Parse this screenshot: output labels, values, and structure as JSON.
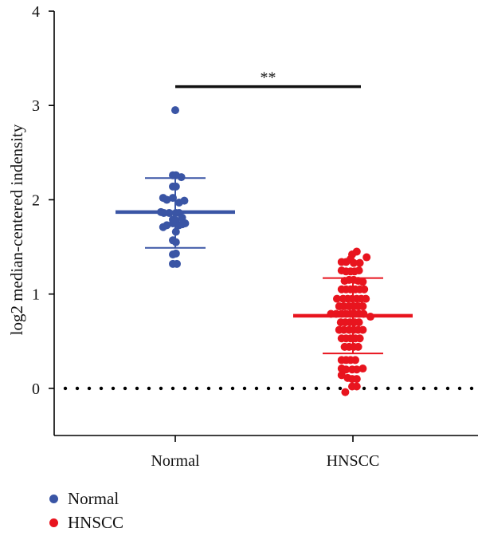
{
  "chart_data": {
    "type": "scatter",
    "ylabel": "log2 median-centered indensity",
    "xlabel": "",
    "ylim": [
      -0.5,
      4
    ],
    "yticks": [
      "0",
      "1",
      "2",
      "3",
      "4"
    ],
    "categories": [
      "Normal",
      "HNSCC"
    ],
    "reference_line": {
      "y": 0,
      "style": "dotted"
    },
    "significance": {
      "label": "**",
      "between": [
        "Normal",
        "HNSCC"
      ],
      "y": 3.2
    },
    "legend": {
      "placement": "bottom-left"
    },
    "series": [
      {
        "name": "Normal",
        "color": "#3a55a5",
        "mean": 1.87,
        "sd_low": 1.49,
        "sd_high": 2.23,
        "points": [
          {
            "dx": 0,
            "y": 2.95
          },
          {
            "dx": -0.15,
            "y": 2.26
          },
          {
            "dx": 0.04,
            "y": 2.26
          },
          {
            "dx": 0.38,
            "y": 2.24
          },
          {
            "dx": -0.15,
            "y": 2.14
          },
          {
            "dx": 0.04,
            "y": 2.14
          },
          {
            "dx": -0.76,
            "y": 2.02
          },
          {
            "dx": -0.53,
            "y": 2.0
          },
          {
            "dx": -0.15,
            "y": 2.02
          },
          {
            "dx": 0.24,
            "y": 1.97
          },
          {
            "dx": 0.57,
            "y": 1.99
          },
          {
            "dx": -0.9,
            "y": 1.87
          },
          {
            "dx": -0.72,
            "y": 1.86
          },
          {
            "dx": -0.38,
            "y": 1.86
          },
          {
            "dx": 0.04,
            "y": 1.86
          },
          {
            "dx": 0.24,
            "y": 1.86
          },
          {
            "dx": -0.15,
            "y": 1.79
          },
          {
            "dx": 0.04,
            "y": 1.78
          },
          {
            "dx": 0.43,
            "y": 1.81
          },
          {
            "dx": 0.62,
            "y": 1.75
          },
          {
            "dx": -0.76,
            "y": 1.71
          },
          {
            "dx": -0.53,
            "y": 1.73
          },
          {
            "dx": -0.15,
            "y": 1.75
          },
          {
            "dx": 0.24,
            "y": 1.73
          },
          {
            "dx": 0.43,
            "y": 1.74
          },
          {
            "dx": 0.04,
            "y": 1.66
          },
          {
            "dx": -0.15,
            "y": 1.57
          },
          {
            "dx": 0.04,
            "y": 1.55
          },
          {
            "dx": -0.15,
            "y": 1.42
          },
          {
            "dx": 0.04,
            "y": 1.43
          },
          {
            "dx": -0.15,
            "y": 1.32
          },
          {
            "dx": 0.1,
            "y": 1.32
          }
        ]
      },
      {
        "name": "HNSCC",
        "color": "#e8141e",
        "mean": 0.77,
        "sd_low": 0.37,
        "sd_high": 1.17,
        "points": [
          {
            "dx": 0.24,
            "y": 1.45
          },
          {
            "dx": -0.05,
            "y": 1.42
          },
          {
            "dx": -0.71,
            "y": 1.34
          },
          {
            "dx": -0.43,
            "y": 1.34
          },
          {
            "dx": -0.15,
            "y": 1.37
          },
          {
            "dx": 0.05,
            "y": 1.33
          },
          {
            "dx": 0.43,
            "y": 1.33
          },
          {
            "dx": 0.86,
            "y": 1.39
          },
          {
            "dx": -0.71,
            "y": 1.25
          },
          {
            "dx": -0.43,
            "y": 1.24
          },
          {
            "dx": -0.15,
            "y": 1.24
          },
          {
            "dx": 0.1,
            "y": 1.24
          },
          {
            "dx": 0.38,
            "y": 1.25
          },
          {
            "dx": -0.52,
            "y": 1.14
          },
          {
            "dx": -0.24,
            "y": 1.15
          },
          {
            "dx": 0.05,
            "y": 1.15
          },
          {
            "dx": 0.33,
            "y": 1.14
          },
          {
            "dx": 0.62,
            "y": 1.13
          },
          {
            "dx": -0.71,
            "y": 1.05
          },
          {
            "dx": -0.43,
            "y": 1.05
          },
          {
            "dx": -0.15,
            "y": 1.05
          },
          {
            "dx": 0.15,
            "y": 1.05
          },
          {
            "dx": 0.43,
            "y": 1.05
          },
          {
            "dx": 0.71,
            "y": 1.05
          },
          {
            "dx": -1.0,
            "y": 0.95
          },
          {
            "dx": -0.62,
            "y": 0.95
          },
          {
            "dx": -0.33,
            "y": 0.95
          },
          {
            "dx": -0.05,
            "y": 0.95
          },
          {
            "dx": 0.24,
            "y": 0.95
          },
          {
            "dx": 0.52,
            "y": 0.95
          },
          {
            "dx": 0.81,
            "y": 0.95
          },
          {
            "dx": -0.86,
            "y": 0.87
          },
          {
            "dx": -0.57,
            "y": 0.87
          },
          {
            "dx": -0.24,
            "y": 0.87
          },
          {
            "dx": 0.05,
            "y": 0.87
          },
          {
            "dx": 0.33,
            "y": 0.87
          },
          {
            "dx": 0.62,
            "y": 0.87
          },
          {
            "dx": -1.38,
            "y": 0.79
          },
          {
            "dx": -1.05,
            "y": 0.79
          },
          {
            "dx": -0.71,
            "y": 0.79
          },
          {
            "dx": -0.43,
            "y": 0.79
          },
          {
            "dx": -0.15,
            "y": 0.79
          },
          {
            "dx": 0.1,
            "y": 0.79
          },
          {
            "dx": 0.38,
            "y": 0.79
          },
          {
            "dx": 0.67,
            "y": 0.79
          },
          {
            "dx": 1.1,
            "y": 0.76
          },
          {
            "dx": -0.76,
            "y": 0.7
          },
          {
            "dx": -0.48,
            "y": 0.7
          },
          {
            "dx": -0.19,
            "y": 0.7
          },
          {
            "dx": 0.1,
            "y": 0.7
          },
          {
            "dx": 0.38,
            "y": 0.7
          },
          {
            "dx": -0.86,
            "y": 0.62
          },
          {
            "dx": -0.57,
            "y": 0.62
          },
          {
            "dx": -0.24,
            "y": 0.62
          },
          {
            "dx": 0.05,
            "y": 0.62
          },
          {
            "dx": 0.33,
            "y": 0.62
          },
          {
            "dx": 0.62,
            "y": 0.62
          },
          {
            "dx": -0.71,
            "y": 0.53
          },
          {
            "dx": -0.43,
            "y": 0.53
          },
          {
            "dx": -0.15,
            "y": 0.53
          },
          {
            "dx": 0.15,
            "y": 0.53
          },
          {
            "dx": 0.43,
            "y": 0.53
          },
          {
            "dx": -0.52,
            "y": 0.44
          },
          {
            "dx": -0.24,
            "y": 0.44
          },
          {
            "dx": 0.05,
            "y": 0.44
          },
          {
            "dx": 0.33,
            "y": 0.44
          },
          {
            "dx": -0.71,
            "y": 0.3
          },
          {
            "dx": -0.43,
            "y": 0.3
          },
          {
            "dx": -0.15,
            "y": 0.3
          },
          {
            "dx": 0.15,
            "y": 0.3
          },
          {
            "dx": -0.71,
            "y": 0.21
          },
          {
            "dx": -0.43,
            "y": 0.2
          },
          {
            "dx": -0.05,
            "y": 0.2
          },
          {
            "dx": 0.24,
            "y": 0.2
          },
          {
            "dx": 0.62,
            "y": 0.21
          },
          {
            "dx": -0.71,
            "y": 0.14
          },
          {
            "dx": -0.33,
            "y": 0.11
          },
          {
            "dx": -0.05,
            "y": 0.1
          },
          {
            "dx": 0.24,
            "y": 0.1
          },
          {
            "dx": -0.05,
            "y": 0.02
          },
          {
            "dx": 0.24,
            "y": 0.02
          },
          {
            "dx": -0.48,
            "y": -0.04
          }
        ]
      }
    ]
  }
}
